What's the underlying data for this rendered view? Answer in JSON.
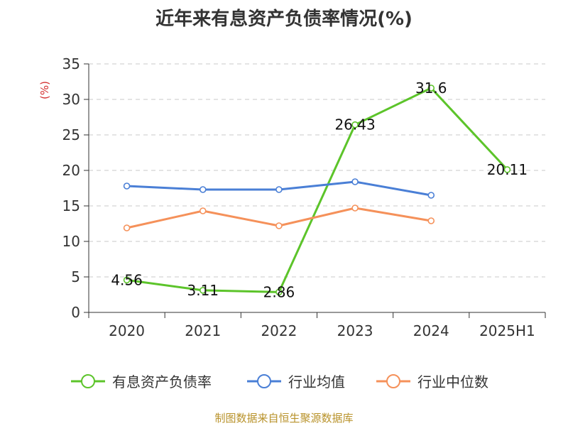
{
  "source_text": "制图数据来自恒生聚源数据库",
  "chart_data": {
    "type": "line",
    "title": "近年来有息资产负债率情况(%)",
    "ylabel": "(%)",
    "xlabel": "",
    "categories": [
      "2020",
      "2021",
      "2022",
      "2023",
      "2024",
      "2025H1"
    ],
    "ylim": [
      0,
      35
    ],
    "yticks": [
      0,
      5,
      10,
      15,
      20,
      25,
      30,
      35
    ],
    "grid": true,
    "legend_position": "bottom",
    "series": [
      {
        "name": "有息资产负债率",
        "color": "#5cc42a",
        "values": [
          4.56,
          3.11,
          2.86,
          26.43,
          31.6,
          20.11
        ],
        "labels": [
          "4.56",
          "3.11",
          "2.86",
          "26.43",
          "31.6",
          "20.11"
        ],
        "show_labels": true
      },
      {
        "name": "行业均值",
        "color": "#4a7fd6",
        "values": [
          17.8,
          17.3,
          17.3,
          18.4,
          16.5,
          null
        ],
        "show_labels": false
      },
      {
        "name": "行业中位数",
        "color": "#f5915a",
        "values": [
          11.9,
          14.3,
          12.2,
          14.7,
          12.9,
          null
        ],
        "show_labels": false
      }
    ]
  }
}
